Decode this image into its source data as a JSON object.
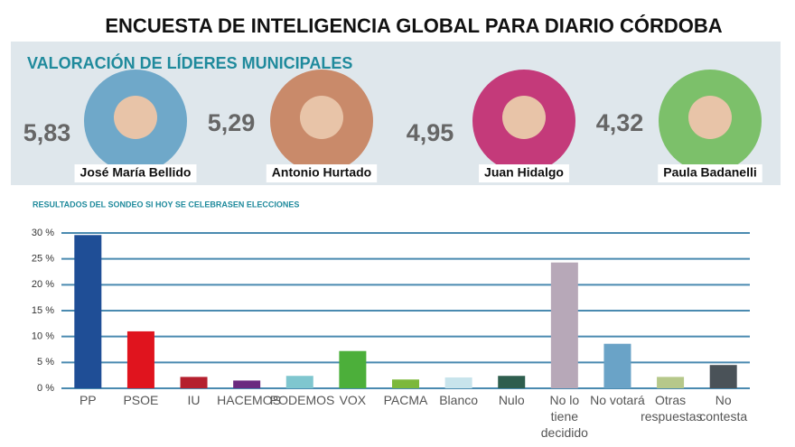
{
  "header": {
    "title": "ENCUESTA DE INTELIGENCIA GLOBAL PARA DIARIO CÓRDOBA"
  },
  "leaders_panel": {
    "title": "VALORACIÓN DE LÍDERES MUNICIPALES",
    "leaders": [
      {
        "score": "5,83",
        "name": "José María Bellido",
        "photo_color": "#6fa8c9"
      },
      {
        "score": "5,29",
        "name": "Antonio Hurtado",
        "photo_color": "#c98a6a"
      },
      {
        "score": "4,95",
        "name": "Juan Hidalgo",
        "photo_color": "#c43a7a"
      },
      {
        "score": "4,32",
        "name": "Paula Badanelli",
        "photo_color": "#7cc06a"
      }
    ]
  },
  "chart_data": {
    "type": "bar",
    "title": "RESULTADOS DEL SONDEO SI HOY SE CELEBRASEN ELECCIONES",
    "categories": [
      "PP",
      "PSOE",
      "IU",
      "HACEMOS",
      "PODEMOS",
      "VOX",
      "PACMA",
      "Blanco",
      "Nulo",
      "No lo tiene decidido",
      "No votará",
      "Otras respuestas",
      "No contesta"
    ],
    "values": [
      29.6,
      11.0,
      2.2,
      1.5,
      2.4,
      7.2,
      1.7,
      2.1,
      2.4,
      24.3,
      8.6,
      2.2,
      4.5
    ],
    "colors": [
      "#1f4e96",
      "#e0141e",
      "#b5202e",
      "#6a2a7f",
      "#7fc6cf",
      "#4caf3a",
      "#7cb83b",
      "#c8e4ec",
      "#2e5e4e",
      "#b7a8b8",
      "#6aa3c7",
      "#b6c88a",
      "#4a5258"
    ],
    "ylim": [
      0,
      30
    ],
    "yticks": [
      {
        "value": 0,
        "label": "0 %"
      },
      {
        "value": 5,
        "label": "5 %"
      },
      {
        "value": 10,
        "label": "10 %"
      },
      {
        "value": 15,
        "label": "15 %"
      },
      {
        "value": 20,
        "label": "20 %"
      },
      {
        "value": 25,
        "label": "25 %"
      },
      {
        "value": 30,
        "label": "30 %"
      }
    ],
    "grid": true,
    "grid_color": "#4a8ab0"
  }
}
